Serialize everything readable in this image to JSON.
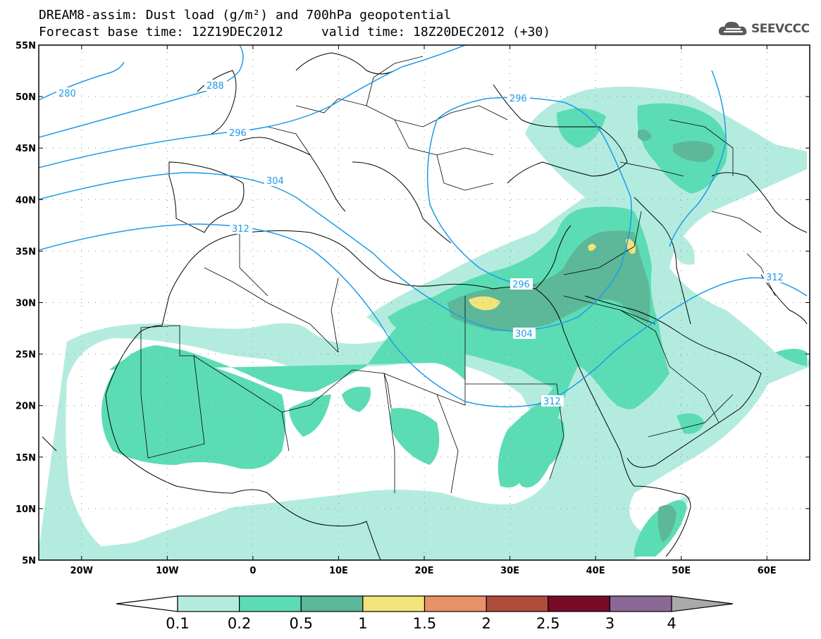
{
  "header": {
    "title_line1": "DREAM8-assim: Dust load (g/m²) and 700hPa geopotential",
    "title_line2": "Forecast base time: 12Z19DEC2012     valid time: 18Z20DEC2012 (+30)",
    "logo_text": "SEEVCCC",
    "logo_icon": "cloud-icon"
  },
  "map": {
    "lon_range": [
      -25,
      65
    ],
    "lat_range": [
      5,
      55
    ],
    "lat_labels": [
      "55N",
      "50N",
      "45N",
      "40N",
      "35N",
      "30N",
      "25N",
      "20N",
      "15N",
      "10N",
      "5N"
    ],
    "lon_labels": [
      "20W",
      "10W",
      "0",
      "10E",
      "20E",
      "30E",
      "40E",
      "50E",
      "60E"
    ],
    "contour_color": "#1e9be8",
    "contour_labels": [
      "280",
      "288",
      "296",
      "304",
      "312",
      "296",
      "304",
      "312",
      "312",
      "296"
    ]
  },
  "colorbar": {
    "labels": [
      "0.1",
      "0.2",
      "0.5",
      "1",
      "1.5",
      "2",
      "2.5",
      "3",
      "4"
    ],
    "colors": [
      "#b3ecdf",
      "#5cdcb4",
      "#5cb898",
      "#f2e47a",
      "#e8926a",
      "#b04c3c",
      "#780a28",
      "#8c6896",
      "#aaaaaa"
    ]
  }
}
